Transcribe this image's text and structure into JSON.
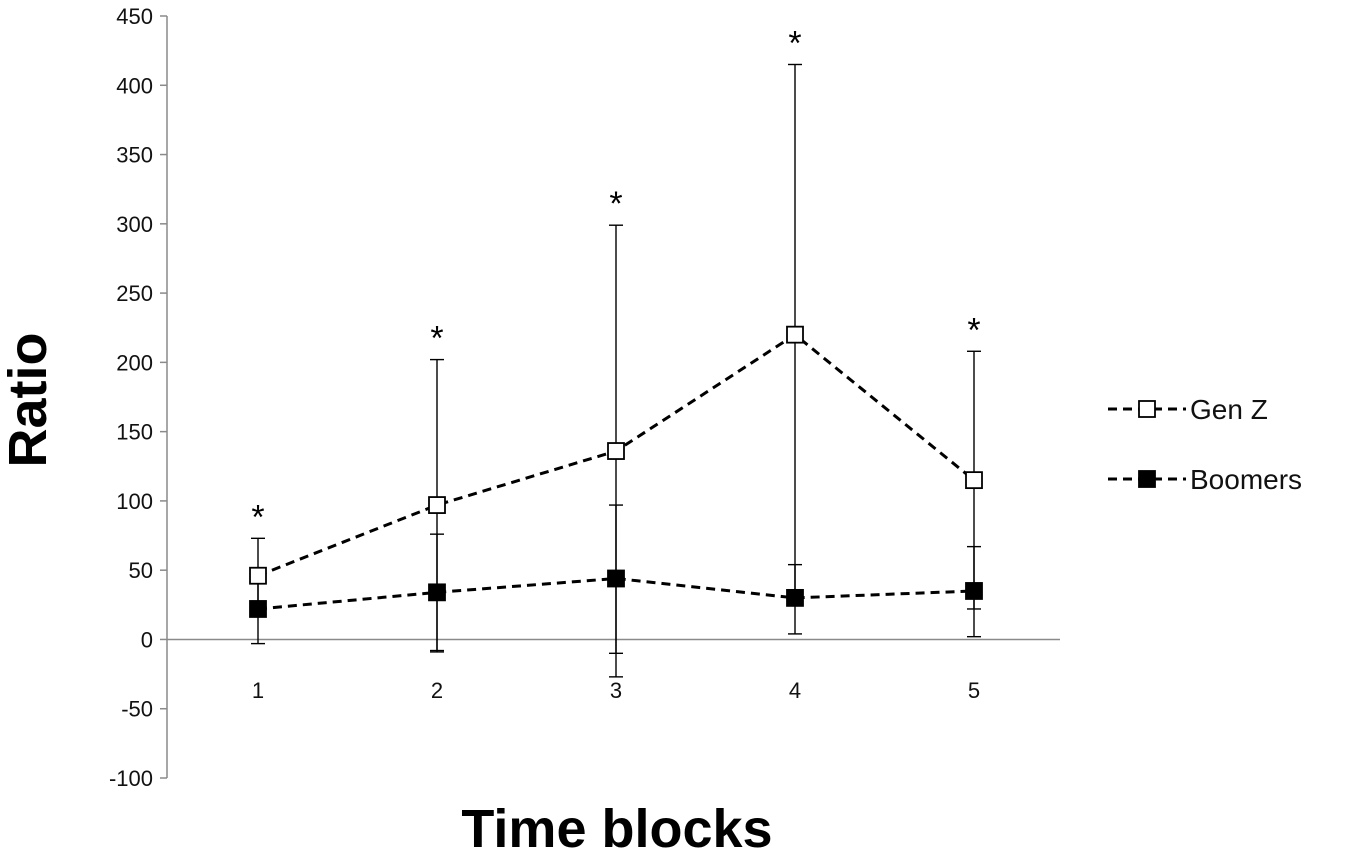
{
  "chart_data": {
    "type": "line",
    "title": "",
    "xlabel": "Time blocks",
    "ylabel": "Ratio",
    "categories": [
      "1",
      "2",
      "3",
      "4",
      "5"
    ],
    "ylim": [
      -100,
      450
    ],
    "yticks": [
      -100,
      -50,
      0,
      50,
      100,
      150,
      200,
      250,
      300,
      350,
      400,
      450
    ],
    "ytick_labels": [
      "-100",
      "-50",
      "0",
      "50",
      "100",
      "150",
      "200",
      "250",
      "300",
      "350",
      "400",
      "450"
    ],
    "grid": false,
    "legend_position": "right",
    "significance_marker": "*",
    "significant": [
      true,
      true,
      true,
      true,
      true
    ],
    "series": [
      {
        "name": "Gen Z",
        "marker": "hollow-square",
        "line_style": "dashed",
        "color": "#000000",
        "values": [
          46,
          97,
          136,
          220,
          115
        ],
        "error_upper": [
          73,
          202,
          299,
          415,
          208
        ],
        "error_lower": [
          19,
          -8,
          -27,
          25,
          22
        ]
      },
      {
        "name": "Boomers",
        "marker": "filled-square",
        "line_style": "dashed",
        "color": "#000000",
        "values": [
          22,
          34,
          44,
          30,
          35
        ],
        "error_upper": [
          45,
          76,
          97,
          54,
          67
        ],
        "error_lower": [
          -3,
          -9,
          -10,
          4,
          2
        ]
      }
    ]
  }
}
